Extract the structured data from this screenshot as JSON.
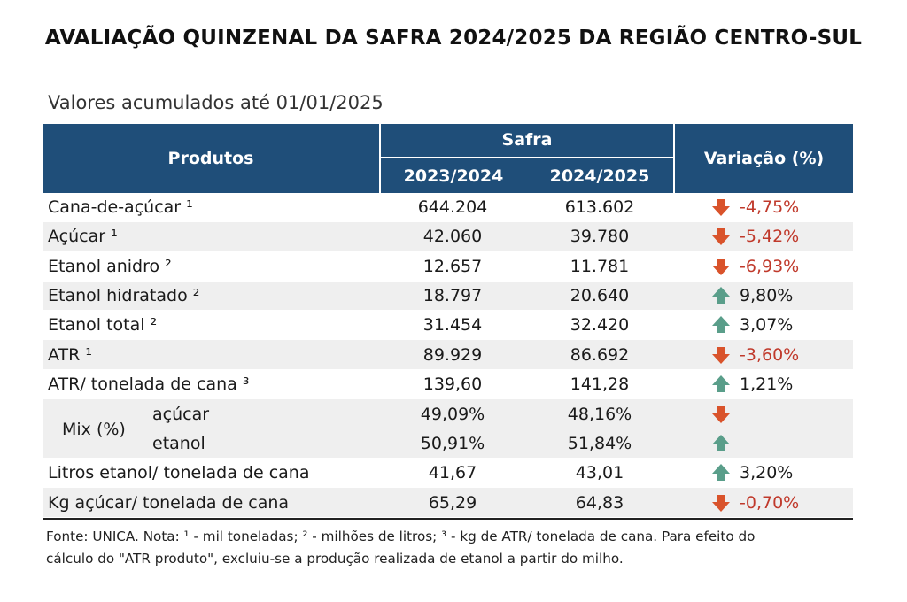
{
  "title": "AVALIAÇÃO QUINZENAL DA SAFRA 2024/2025 DA REGIÃO CENTRO-SUL",
  "subtitle": "Valores acumulados até 01/01/2025",
  "header": {
    "produtos": "Produtos",
    "safra": "Safra",
    "year1": "2023/2024",
    "year2": "2024/2025",
    "variacao": "Variação (%)"
  },
  "colors": {
    "header_bg": "#1f4e79",
    "down": "#d9532b",
    "up": "#5a9e8a",
    "neg_text": "#c0392b"
  },
  "rows": [
    {
      "produto": "Cana-de-açúcar ¹",
      "v1": "644.204",
      "v2": "613.602",
      "var": "-4,75%",
      "dir": "down"
    },
    {
      "produto": "Açúcar ¹",
      "v1": "42.060",
      "v2": "39.780",
      "var": "-5,42%",
      "dir": "down"
    },
    {
      "produto": "Etanol anidro ²",
      "v1": "12.657",
      "v2": "11.781",
      "var": "-6,93%",
      "dir": "down"
    },
    {
      "produto": "Etanol hidratado ²",
      "v1": "18.797",
      "v2": "20.640",
      "var": "9,80%",
      "dir": "up"
    },
    {
      "produto": "Etanol total ²",
      "v1": "31.454",
      "v2": "32.420",
      "var": "3,07%",
      "dir": "up"
    },
    {
      "produto": "ATR ¹",
      "v1": "89.929",
      "v2": "86.692",
      "var": "-3,60%",
      "dir": "down"
    },
    {
      "produto": "ATR/ tonelada de cana ³",
      "v1": "139,60",
      "v2": "141,28",
      "var": "1,21%",
      "dir": "up"
    }
  ],
  "mix": {
    "label": "Mix (%)",
    "acucar": {
      "label": "açúcar",
      "v1": "49,09%",
      "v2": "48,16%",
      "dir": "down"
    },
    "etanol": {
      "label": "etanol",
      "v1": "50,91%",
      "v2": "51,84%",
      "dir": "up"
    }
  },
  "rows2": [
    {
      "produto": "Litros etanol/ tonelada de cana",
      "v1": "41,67",
      "v2": "43,01",
      "var": "3,20%",
      "dir": "up"
    },
    {
      "produto": "Kg açúcar/ tonelada de cana",
      "v1": "65,29",
      "v2": "64,83",
      "var": "-0,70%",
      "dir": "down"
    }
  ],
  "footnote_line1": "Fonte: UNICA. Nota: ¹ - mil toneladas; ² - milhões de litros; ³ - kg de ATR/ tonelada de cana. Para efeito do",
  "footnote_line2": "cálculo do \"ATR produto\", excluiu-se a produção realizada de etanol a partir do milho."
}
